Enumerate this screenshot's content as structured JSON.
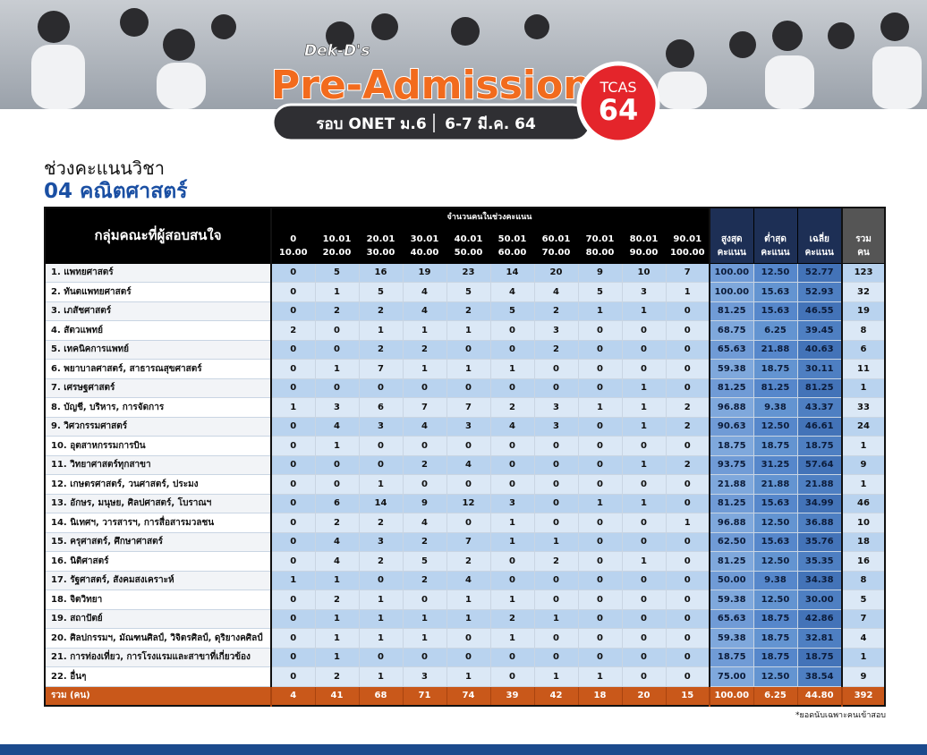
{
  "banner": {
    "brand": "Dek-D's",
    "title": "Pre-Admission",
    "round": "รอบ ONET ม.6",
    "date": "6-7 มี.ค. 64",
    "badge_top": "TCAS",
    "badge_bottom": "64"
  },
  "heading": {
    "line1": "ช่วงคะแนนวิชา",
    "line2": "04 คณิตศาสตร์"
  },
  "table": {
    "header": {
      "group_label": "กลุ่มคณะที่ผู้สอบสนใจ",
      "span_label": "จำนวนคนในช่วงคะแนน",
      "ranges": [
        [
          "0",
          "10.00"
        ],
        [
          "10.01",
          "20.00"
        ],
        [
          "20.01",
          "30.00"
        ],
        [
          "30.01",
          "40.00"
        ],
        [
          "40.01",
          "50.00"
        ],
        [
          "50.01",
          "60.00"
        ],
        [
          "60.01",
          "70.00"
        ],
        [
          "70.01",
          "80.00"
        ],
        [
          "80.01",
          "90.00"
        ],
        [
          "90.01",
          "100.00"
        ]
      ],
      "stats": [
        [
          "สูงสุด",
          "คะแนน"
        ],
        [
          "ต่ำสุด",
          "คะแนน"
        ],
        [
          "เฉลี่ย",
          "คะแนน"
        ]
      ],
      "total": [
        "รวม",
        "คน"
      ]
    },
    "rows": [
      {
        "name": "1. แพทยศาสตร์",
        "counts": [
          0,
          5,
          16,
          19,
          23,
          14,
          20,
          9,
          10,
          7
        ],
        "stats": [
          "100.00",
          "12.50",
          "52.77"
        ],
        "total": 123
      },
      {
        "name": "2. ทันตแพทยศาสตร์",
        "counts": [
          0,
          1,
          5,
          4,
          5,
          4,
          4,
          5,
          3,
          1
        ],
        "stats": [
          "100.00",
          "15.63",
          "52.93"
        ],
        "total": 32
      },
      {
        "name": "3. เภสัชศาสตร์",
        "counts": [
          0,
          2,
          2,
          4,
          2,
          5,
          2,
          1,
          1,
          0
        ],
        "stats": [
          "81.25",
          "15.63",
          "46.55"
        ],
        "total": 19
      },
      {
        "name": "4. สัตวแพทย์",
        "counts": [
          2,
          0,
          1,
          1,
          1,
          0,
          3,
          0,
          0,
          0
        ],
        "stats": [
          "68.75",
          "6.25",
          "39.45"
        ],
        "total": 8
      },
      {
        "name": "5. เทคนิคการแพทย์",
        "counts": [
          0,
          0,
          2,
          2,
          0,
          0,
          2,
          0,
          0,
          0
        ],
        "stats": [
          "65.63",
          "21.88",
          "40.63"
        ],
        "total": 6
      },
      {
        "name": "6. พยาบาลศาสตร์, สาธารณสุขศาสตร์",
        "counts": [
          0,
          1,
          7,
          1,
          1,
          1,
          0,
          0,
          0,
          0
        ],
        "stats": [
          "59.38",
          "18.75",
          "30.11"
        ],
        "total": 11
      },
      {
        "name": "7. เศรษฐศาสตร์",
        "counts": [
          0,
          0,
          0,
          0,
          0,
          0,
          0,
          0,
          1,
          0
        ],
        "stats": [
          "81.25",
          "81.25",
          "81.25"
        ],
        "total": 1
      },
      {
        "name": "8. บัญชี, บริหาร, การจัดการ",
        "counts": [
          1,
          3,
          6,
          7,
          7,
          2,
          3,
          1,
          1,
          2
        ],
        "stats": [
          "96.88",
          "9.38",
          "43.37"
        ],
        "total": 33
      },
      {
        "name": "9. วิศวกรรมศาสตร์",
        "counts": [
          0,
          4,
          3,
          4,
          3,
          4,
          3,
          0,
          1,
          2
        ],
        "stats": [
          "90.63",
          "12.50",
          "46.61"
        ],
        "total": 24
      },
      {
        "name": "10. อุตสาหกรรมการบิน",
        "counts": [
          0,
          1,
          0,
          0,
          0,
          0,
          0,
          0,
          0,
          0
        ],
        "stats": [
          "18.75",
          "18.75",
          "18.75"
        ],
        "total": 1
      },
      {
        "name": "11. วิทยาศาสตร์ทุกสาขา",
        "counts": [
          0,
          0,
          0,
          2,
          4,
          0,
          0,
          0,
          1,
          2
        ],
        "stats": [
          "93.75",
          "31.25",
          "57.64"
        ],
        "total": 9
      },
      {
        "name": "12. เกษตรศาสตร์, วนศาสตร์, ประมง",
        "counts": [
          0,
          0,
          1,
          0,
          0,
          0,
          0,
          0,
          0,
          0
        ],
        "stats": [
          "21.88",
          "21.88",
          "21.88"
        ],
        "total": 1
      },
      {
        "name": "13. อักษร, มนุษย, ศิลปศาสตร์, โบราณฯ",
        "counts": [
          0,
          6,
          14,
          9,
          12,
          3,
          0,
          1,
          1,
          0
        ],
        "stats": [
          "81.25",
          "15.63",
          "34.99"
        ],
        "total": 46
      },
      {
        "name": "14. นิเทศฯ, วารสารฯ, การสื่อสารมวลชน",
        "counts": [
          0,
          2,
          2,
          4,
          0,
          1,
          0,
          0,
          0,
          1
        ],
        "stats": [
          "96.88",
          "12.50",
          "36.88"
        ],
        "total": 10
      },
      {
        "name": "15. ครุศาสตร์, ศึกษาศาสตร์",
        "counts": [
          0,
          4,
          3,
          2,
          7,
          1,
          1,
          0,
          0,
          0
        ],
        "stats": [
          "62.50",
          "15.63",
          "35.76"
        ],
        "total": 18
      },
      {
        "name": "16. นิติศาสตร์",
        "counts": [
          0,
          4,
          2,
          5,
          2,
          0,
          2,
          0,
          1,
          0
        ],
        "stats": [
          "81.25",
          "12.50",
          "35.35"
        ],
        "total": 16
      },
      {
        "name": "17. รัฐศาสตร์, สังคมสงเคราะห์",
        "counts": [
          1,
          1,
          0,
          2,
          4,
          0,
          0,
          0,
          0,
          0
        ],
        "stats": [
          "50.00",
          "9.38",
          "34.38"
        ],
        "total": 8
      },
      {
        "name": "18. จิตวิทยา",
        "counts": [
          0,
          2,
          1,
          0,
          1,
          1,
          0,
          0,
          0,
          0
        ],
        "stats": [
          "59.38",
          "12.50",
          "30.00"
        ],
        "total": 5
      },
      {
        "name": "19. สถาปัตย์",
        "counts": [
          0,
          1,
          1,
          1,
          1,
          2,
          1,
          0,
          0,
          0
        ],
        "stats": [
          "65.63",
          "18.75",
          "42.86"
        ],
        "total": 7
      },
      {
        "name": "20. ศิลปกรรมฯ, มัณฑนศิลป์, วิจิตรศิลป์, ดุริยางคศิลป์",
        "counts": [
          0,
          1,
          1,
          1,
          0,
          1,
          0,
          0,
          0,
          0
        ],
        "stats": [
          "59.38",
          "18.75",
          "32.81"
        ],
        "total": 4
      },
      {
        "name": "21. การท่องเที่ยว, การโรงแรมและสาขาที่เกี่ยวข้อง",
        "counts": [
          0,
          1,
          0,
          0,
          0,
          0,
          0,
          0,
          0,
          0
        ],
        "stats": [
          "18.75",
          "18.75",
          "18.75"
        ],
        "total": 1
      },
      {
        "name": "22. อื่นๆ",
        "counts": [
          0,
          2,
          1,
          3,
          1,
          0,
          1,
          1,
          0,
          0
        ],
        "stats": [
          "75.00",
          "12.50",
          "38.54"
        ],
        "total": 9
      }
    ],
    "footer": {
      "name": "รวม (คน)",
      "counts": [
        4,
        41,
        68,
        71,
        74,
        39,
        42,
        18,
        20,
        15
      ],
      "stats": [
        "100.00",
        "6.25",
        "44.80"
      ],
      "total": 392
    }
  },
  "note": "*ยอดนับเฉพาะคนเข้าสอบ"
}
